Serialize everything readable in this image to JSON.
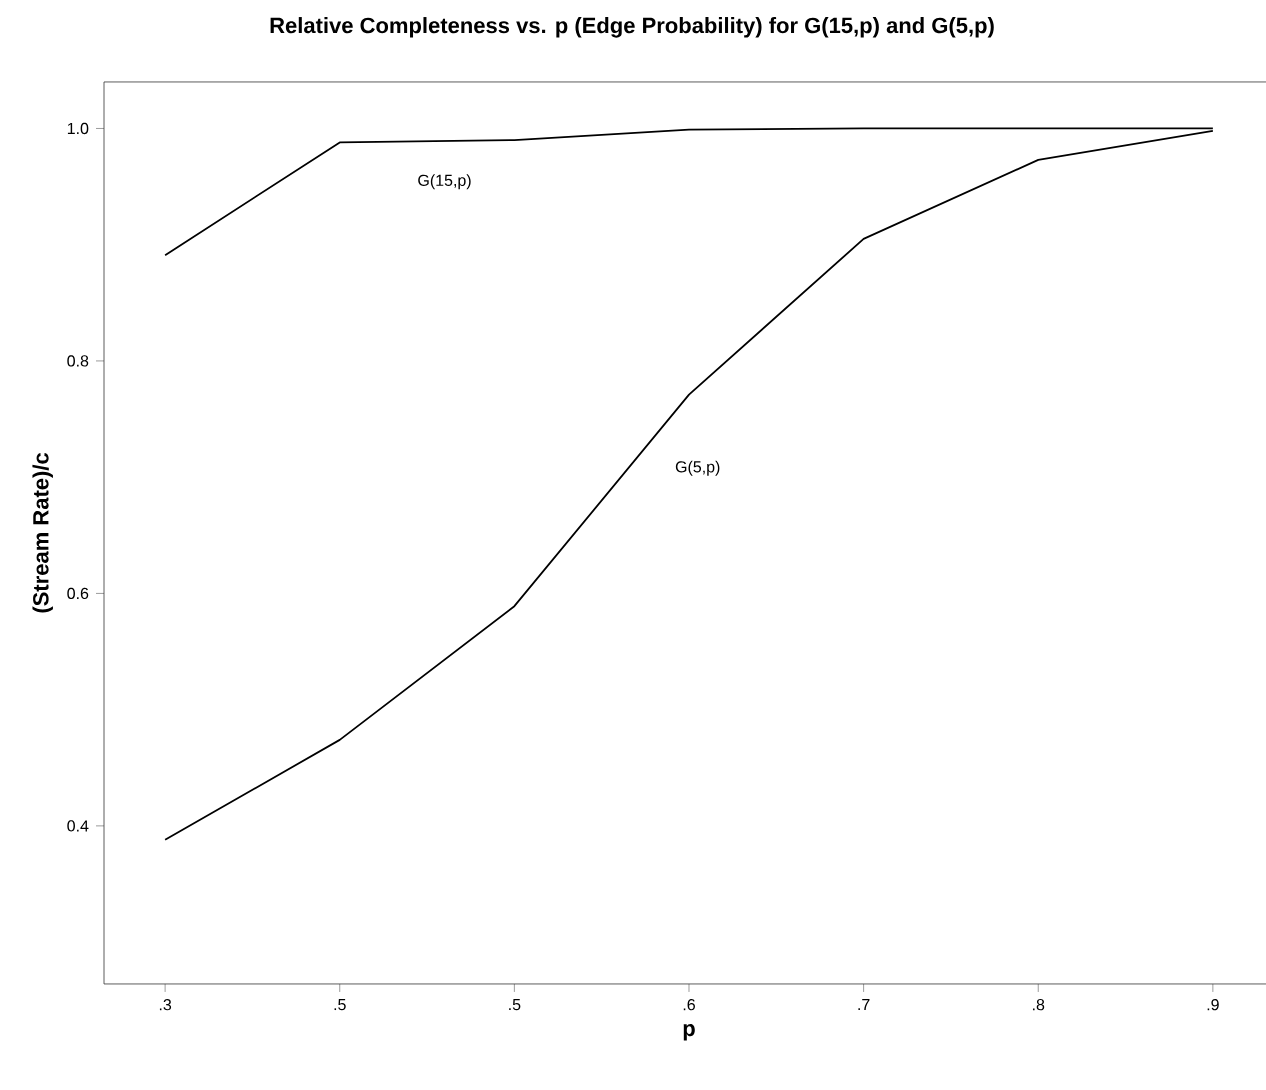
{
  "chart_data": {
    "type": "line",
    "title": "Relative Completeness vs. p (Edge Probability) for G(15,p) and G(5,p)",
    "xlabel": "p",
    "ylabel": "(Stream Rate)/c",
    "categories": [
      ".3",
      ".5",
      ".5",
      ".6",
      ".7",
      ".8",
      ".9"
    ],
    "series": [
      {
        "name": "G(15,p)",
        "color": "#000000",
        "values": [
          0.891,
          0.988,
          0.99,
          0.999,
          1.0,
          1.0,
          1.0
        ]
      },
      {
        "name": "G(5,p)",
        "color": "#000000",
        "values": [
          0.388,
          0.474,
          0.589,
          0.771,
          0.905,
          0.973,
          0.998
        ]
      }
    ],
    "ylim": [
      0.264,
      1.04
    ],
    "yticks": [
      0.4,
      0.6,
      0.8,
      {
        "value": 1.0,
        "label": "1.0"
      }
    ],
    "grid": false,
    "legend": false,
    "marker": "none",
    "line_style": "solid"
  }
}
